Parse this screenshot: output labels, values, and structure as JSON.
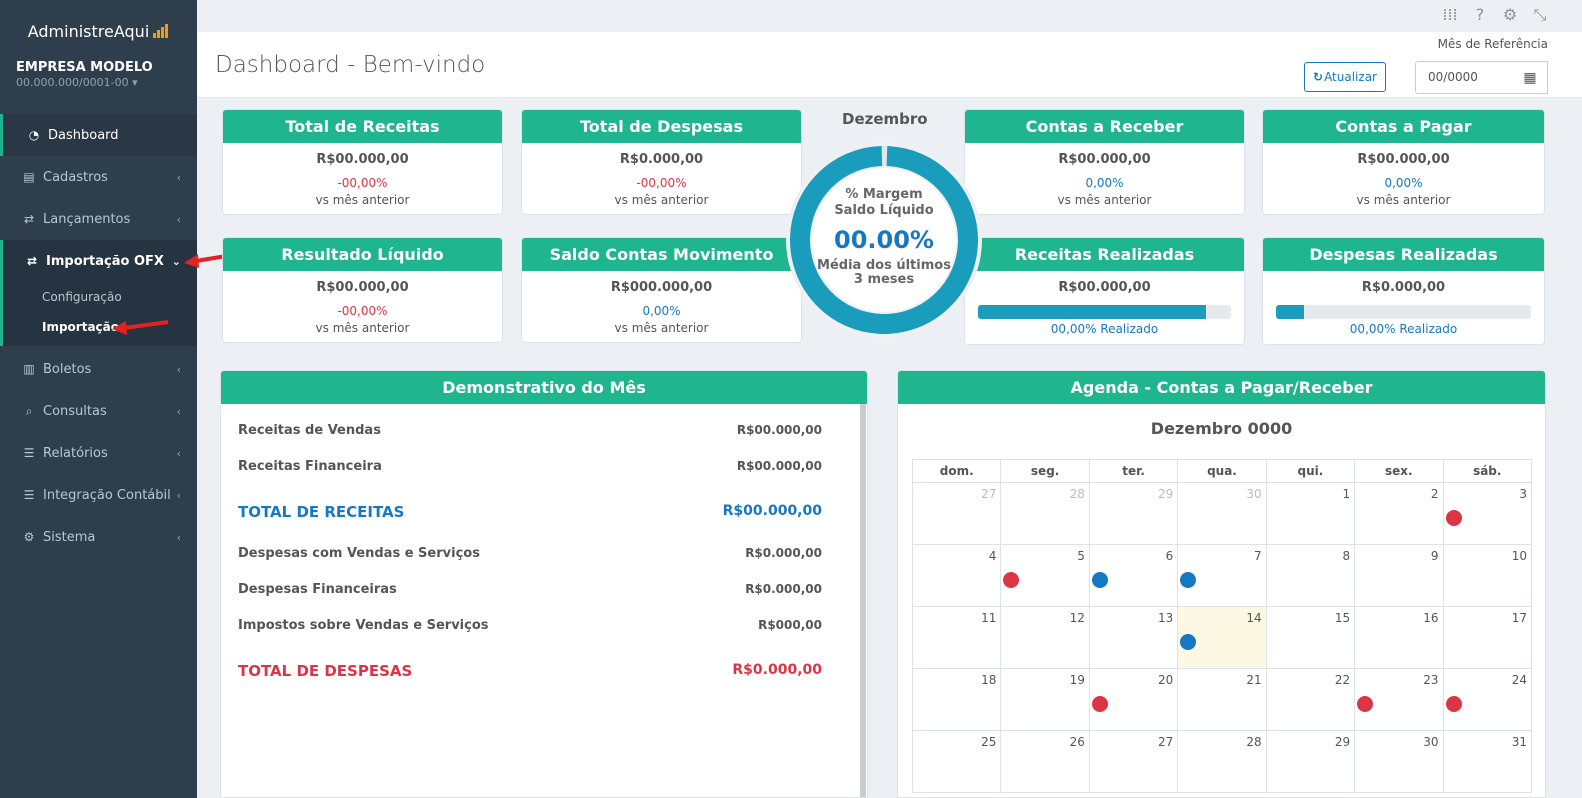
{
  "brand": {
    "name": "AdministreAqui"
  },
  "company": {
    "name": "EMPRESA MODELO",
    "cnpj": "00.000.000/0001-00 ▾"
  },
  "sidebar": {
    "items": [
      {
        "label": "Dashboard",
        "icon": "dashboard-icon"
      },
      {
        "label": "Cadastros",
        "icon": "files-icon"
      },
      {
        "label": "Lançamentos",
        "icon": "exchange-icon"
      },
      {
        "label": "Importação OFX",
        "icon": "exchange-icon"
      },
      {
        "label": "Boletos",
        "icon": "barcode-icon"
      },
      {
        "label": "Consultas",
        "icon": "search-icon"
      },
      {
        "label": "Relatórios",
        "icon": "list-icon"
      },
      {
        "label": "Integração Contábil",
        "icon": "list-icon"
      },
      {
        "label": "Sistema",
        "icon": "cogs-icon"
      }
    ],
    "sub_items": [
      "Configuração",
      "Importação"
    ]
  },
  "header": {
    "title": "Dashboard - Bem-vindo",
    "ref_label": "Mês de Referência",
    "refresh_label": "Atualizar",
    "date_value": "00/0000"
  },
  "cards": {
    "receitas": {
      "title": "Total de Receitas",
      "value": "R$00.000,00",
      "pct": "-00,00%",
      "sub": "vs mês anterior"
    },
    "despesas": {
      "title": "Total de Despesas",
      "value": "R$0.000,00",
      "pct": "-00,00%",
      "sub": "vs mês anterior"
    },
    "receber": {
      "title": "Contas a Receber",
      "value": "R$00.000,00",
      "pct": "0,00%",
      "sub": "vs mês anterior"
    },
    "pagar": {
      "title": "Contas a Pagar",
      "value": "R$00.000,00",
      "pct": "0,00%",
      "sub": "vs mês anterior"
    },
    "resultado": {
      "title": "Resultado Líquido",
      "value": "R$00.000,00",
      "pct": "-00,00%",
      "sub": "vs mês anterior"
    },
    "saldo": {
      "title": "Saldo Contas Movimento",
      "value": "R$000.000,00",
      "pct": "0,00%",
      "sub": "vs mês anterior"
    },
    "rec_realizadas": {
      "title": "Receitas Realizadas",
      "value": "R$00.000,00",
      "progress": 0.9,
      "realized": "00,00% Realizado"
    },
    "desp_realizadas": {
      "title": "Despesas Realizadas",
      "value": "R$0.000,00",
      "progress": 0.11,
      "realized": "00,00% Realizado"
    }
  },
  "donut": {
    "month": "Dezembro",
    "line1": "% Margem",
    "line2": "Saldo Líquido",
    "value": "00.00%",
    "line3": "Média dos últimos",
    "line4": "3 meses",
    "fill": 0.99
  },
  "demonstrativo": {
    "title": "Demonstrativo do Mês",
    "rows": [
      {
        "label": "Receitas de Vendas",
        "value": "R$00.000,00"
      },
      {
        "label": "Receitas Financeira",
        "value": "R$00.000,00"
      },
      {
        "label": "TOTAL DE RECEITAS",
        "value": "R$00.000,00"
      },
      {
        "label": "Despesas com Vendas e Serviços",
        "value": "R$0.000,00"
      },
      {
        "label": "Despesas Financeiras",
        "value": "R$0.000,00"
      },
      {
        "label": "Impostos sobre Vendas e Serviços",
        "value": "R$000,00"
      },
      {
        "label": "TOTAL DE DESPESAS",
        "value": "R$0.000,00"
      }
    ]
  },
  "agenda": {
    "title": "Agenda - Contas a Pagar/Receber",
    "month_title": "Dezembro 0000",
    "weekdays": [
      "dom.",
      "seg.",
      "ter.",
      "qua.",
      "qui.",
      "sex.",
      "sáb."
    ],
    "weeks": [
      [
        "27",
        "28",
        "29",
        "30",
        "1",
        "2",
        "3"
      ],
      [
        "4",
        "5",
        "6",
        "7",
        "8",
        "9",
        "10"
      ],
      [
        "11",
        "12",
        "13",
        "14",
        "15",
        "16",
        "17"
      ],
      [
        "18",
        "19",
        "20",
        "21",
        "22",
        "23",
        "24"
      ],
      [
        "25",
        "26",
        "27",
        "28",
        "29",
        "30",
        "31"
      ]
    ]
  },
  "colors": {
    "accent": "#1fb58f",
    "sidebar": "#2f3e4c",
    "negative": "#dc3545",
    "positive": "#1778c2",
    "donut": "#1a9dbd"
  }
}
